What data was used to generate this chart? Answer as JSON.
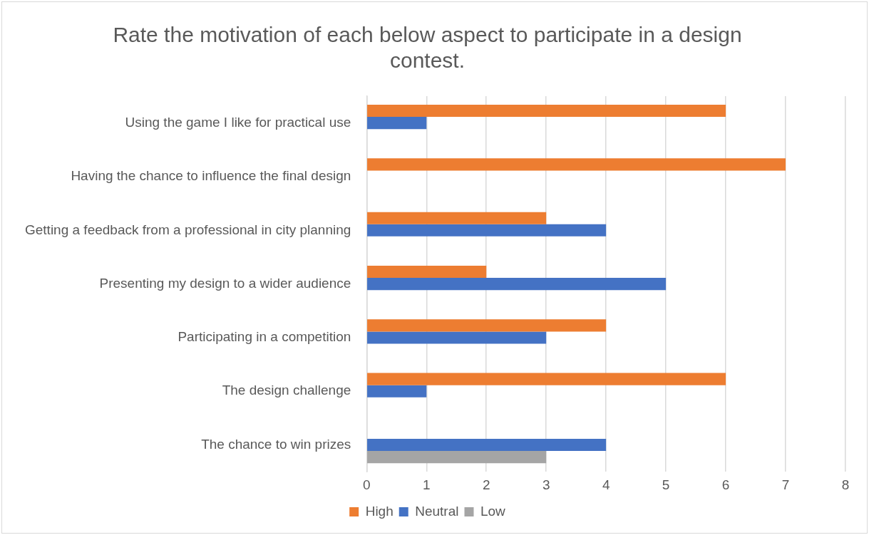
{
  "chart_data": {
    "type": "bar",
    "orientation": "horizontal",
    "title": "Rate the motivation of each below aspect to participate in a design contest.",
    "categories": [
      "Using the game I like for practical use",
      "Having the chance to influence the final design",
      "Getting a feedback from a professional in city planning",
      "Presenting my design to a wider audience",
      "Participating in a competition",
      "The design challenge",
      "The chance to win prizes"
    ],
    "series": [
      {
        "name": "High",
        "color": "#ed7d31",
        "values": [
          6,
          7,
          3,
          2,
          4,
          6,
          null
        ]
      },
      {
        "name": "Neutral",
        "color": "#4472c4",
        "values": [
          1,
          null,
          4,
          5,
          3,
          1,
          4
        ]
      },
      {
        "name": "Low",
        "color": "#a5a5a5",
        "values": [
          null,
          null,
          null,
          null,
          null,
          null,
          3
        ]
      }
    ],
    "xlim": [
      0,
      8
    ],
    "xticks": [
      0,
      1,
      2,
      3,
      4,
      5,
      6,
      7,
      8
    ],
    "grid": "x",
    "legend": "bottom"
  }
}
